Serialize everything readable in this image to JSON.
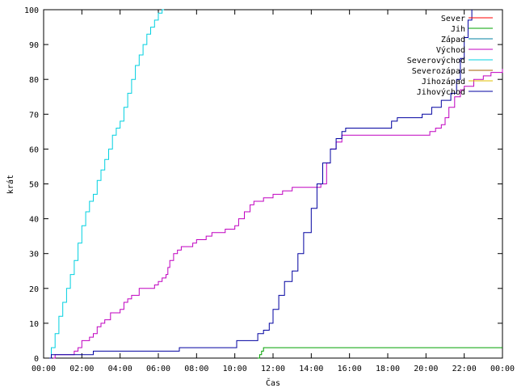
{
  "chart_data": {
    "type": "line",
    "title": "",
    "xlabel": "Čas",
    "ylabel": "krát",
    "ylim": [
      0,
      100
    ],
    "xlim": [
      0,
      24
    ],
    "grid": false,
    "legend_placement": "top-right",
    "yticks": [
      0,
      10,
      20,
      30,
      40,
      50,
      60,
      70,
      80,
      90,
      100
    ],
    "xticks": [
      {
        "value": 0,
        "label": "00:00"
      },
      {
        "value": 2,
        "label": "02:00"
      },
      {
        "value": 4,
        "label": "04:00"
      },
      {
        "value": 6,
        "label": "06:00"
      },
      {
        "value": 8,
        "label": "08:00"
      },
      {
        "value": 10,
        "label": "10:00"
      },
      {
        "value": 12,
        "label": "12:00"
      },
      {
        "value": 14,
        "label": "14:00"
      },
      {
        "value": 16,
        "label": "16:00"
      },
      {
        "value": 18,
        "label": "18:00"
      },
      {
        "value": 20,
        "label": "20:00"
      },
      {
        "value": 22,
        "label": "22:00"
      },
      {
        "value": 24,
        "label": "00:00"
      }
    ],
    "series": [
      {
        "name": "Sever",
        "color": "#ff0000",
        "points": []
      },
      {
        "name": "Jih",
        "color": "#00a000",
        "points": [
          [
            11.2,
            0
          ],
          [
            11.3,
            1
          ],
          [
            11.4,
            2
          ],
          [
            11.5,
            3
          ],
          [
            24,
            3
          ]
        ]
      },
      {
        "name": "Západ",
        "color": "#0080a0",
        "points": []
      },
      {
        "name": "Východ",
        "color": "#c000c0",
        "points": [
          [
            0.5,
            0
          ],
          [
            0.6,
            1
          ],
          [
            1.5,
            1
          ],
          [
            1.6,
            2
          ],
          [
            1.8,
            3
          ],
          [
            2.0,
            5
          ],
          [
            2.4,
            6
          ],
          [
            2.6,
            7
          ],
          [
            2.8,
            9
          ],
          [
            3.0,
            10
          ],
          [
            3.2,
            11
          ],
          [
            3.5,
            13
          ],
          [
            4.0,
            14
          ],
          [
            4.2,
            16
          ],
          [
            4.4,
            17
          ],
          [
            4.6,
            18
          ],
          [
            5.0,
            20
          ],
          [
            5.5,
            20
          ],
          [
            5.8,
            21
          ],
          [
            6.0,
            22
          ],
          [
            6.2,
            23
          ],
          [
            6.4,
            24
          ],
          [
            6.5,
            26
          ],
          [
            6.6,
            28
          ],
          [
            6.8,
            30
          ],
          [
            7.0,
            31
          ],
          [
            7.2,
            32
          ],
          [
            7.8,
            33
          ],
          [
            8.0,
            34
          ],
          [
            8.5,
            35
          ],
          [
            8.8,
            36
          ],
          [
            9.0,
            36
          ],
          [
            9.5,
            37
          ],
          [
            10.0,
            38
          ],
          [
            10.2,
            40
          ],
          [
            10.5,
            42
          ],
          [
            10.8,
            44
          ],
          [
            11.0,
            45
          ],
          [
            11.5,
            46
          ],
          [
            12.0,
            47
          ],
          [
            12.5,
            48
          ],
          [
            13.0,
            49
          ],
          [
            14.0,
            49
          ],
          [
            14.5,
            50
          ],
          [
            14.8,
            56
          ],
          [
            15.0,
            60
          ],
          [
            15.3,
            62
          ],
          [
            15.6,
            64
          ],
          [
            20.0,
            64
          ],
          [
            20.2,
            65
          ],
          [
            20.5,
            66
          ],
          [
            20.8,
            67
          ],
          [
            21.0,
            69
          ],
          [
            21.2,
            72
          ],
          [
            21.5,
            75
          ],
          [
            21.8,
            77
          ],
          [
            22.0,
            78
          ],
          [
            22.5,
            80
          ],
          [
            23.0,
            81
          ],
          [
            23.4,
            82
          ],
          [
            24,
            83
          ]
        ]
      },
      {
        "name": "Severovýchod",
        "color": "#00d0e0",
        "points": [
          [
            0.3,
            0
          ],
          [
            0.4,
            3
          ],
          [
            0.6,
            7
          ],
          [
            0.8,
            12
          ],
          [
            1.0,
            16
          ],
          [
            1.2,
            20
          ],
          [
            1.4,
            24
          ],
          [
            1.6,
            28
          ],
          [
            1.8,
            33
          ],
          [
            2.0,
            38
          ],
          [
            2.2,
            42
          ],
          [
            2.4,
            45
          ],
          [
            2.6,
            47
          ],
          [
            2.8,
            51
          ],
          [
            3.0,
            54
          ],
          [
            3.2,
            57
          ],
          [
            3.4,
            60
          ],
          [
            3.6,
            64
          ],
          [
            3.8,
            66
          ],
          [
            4.0,
            68
          ],
          [
            4.2,
            72
          ],
          [
            4.4,
            76
          ],
          [
            4.6,
            80
          ],
          [
            4.8,
            84
          ],
          [
            5.0,
            87
          ],
          [
            5.2,
            90
          ],
          [
            5.4,
            93
          ],
          [
            5.6,
            95
          ],
          [
            5.8,
            97
          ],
          [
            6.0,
            99
          ],
          [
            6.2,
            100
          ],
          [
            6.3,
            100
          ]
        ]
      },
      {
        "name": "Severozápad",
        "color": "#a06000",
        "points": []
      },
      {
        "name": "Jihozápad",
        "color": "#e0c000",
        "points": []
      },
      {
        "name": "Jihovýchod",
        "color": "#0000a0",
        "points": [
          [
            0.3,
            0
          ],
          [
            0.4,
            1
          ],
          [
            2.5,
            1
          ],
          [
            2.6,
            2
          ],
          [
            7.0,
            2
          ],
          [
            7.1,
            3
          ],
          [
            10.0,
            3
          ],
          [
            10.1,
            5
          ],
          [
            11.0,
            5
          ],
          [
            11.2,
            7
          ],
          [
            11.5,
            8
          ],
          [
            11.8,
            10
          ],
          [
            12.0,
            14
          ],
          [
            12.3,
            18
          ],
          [
            12.6,
            22
          ],
          [
            13.0,
            25
          ],
          [
            13.3,
            30
          ],
          [
            13.6,
            36
          ],
          [
            14.0,
            43
          ],
          [
            14.3,
            50
          ],
          [
            14.6,
            56
          ],
          [
            15.0,
            60
          ],
          [
            15.3,
            63
          ],
          [
            15.6,
            65
          ],
          [
            15.8,
            66
          ],
          [
            18.0,
            66
          ],
          [
            18.2,
            68
          ],
          [
            18.5,
            69
          ],
          [
            19.5,
            69
          ],
          [
            19.8,
            70
          ],
          [
            20.3,
            72
          ],
          [
            20.8,
            74
          ],
          [
            21.3,
            76
          ],
          [
            21.6,
            80
          ],
          [
            21.8,
            86
          ],
          [
            22.0,
            92
          ],
          [
            22.2,
            97
          ],
          [
            22.4,
            100
          ]
        ]
      }
    ]
  }
}
